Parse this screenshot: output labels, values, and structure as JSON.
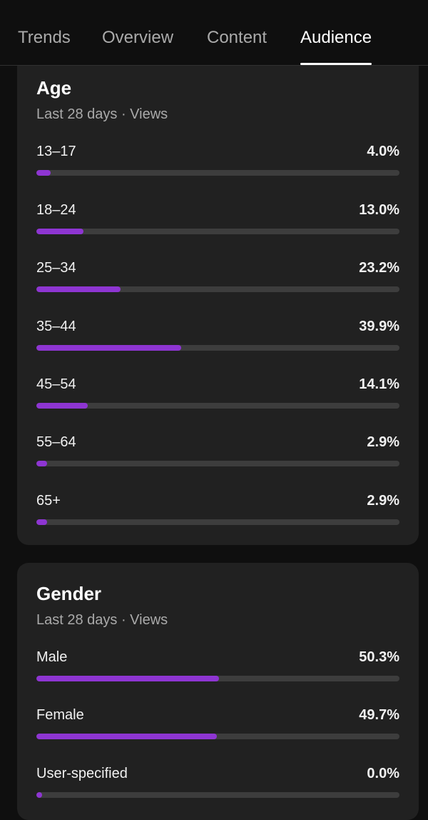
{
  "tabs": [
    {
      "label": "Trends",
      "active": false
    },
    {
      "label": "Overview",
      "active": false
    },
    {
      "label": "Content",
      "active": false
    },
    {
      "label": "Audience",
      "active": true
    }
  ],
  "colors": {
    "accent": "#8e35d2",
    "track": "#3d3d3d",
    "card": "#212121",
    "background": "#0f0f0f"
  },
  "age": {
    "title": "Age",
    "subtitle": "Last 28 days · Views",
    "rows": [
      {
        "label": "13–17",
        "value": "4.0%",
        "percent": 4.0
      },
      {
        "label": "18–24",
        "value": "13.0%",
        "percent": 13.0
      },
      {
        "label": "25–34",
        "value": "23.2%",
        "percent": 23.2
      },
      {
        "label": "35–44",
        "value": "39.9%",
        "percent": 39.9
      },
      {
        "label": "45–54",
        "value": "14.1%",
        "percent": 14.1
      },
      {
        "label": "55–64",
        "value": "2.9%",
        "percent": 2.9
      },
      {
        "label": "65+",
        "value": "2.9%",
        "percent": 2.9
      }
    ]
  },
  "gender": {
    "title": "Gender",
    "subtitle": "Last 28 days · Views",
    "rows": [
      {
        "label": "Male",
        "value": "50.3%",
        "percent": 50.3
      },
      {
        "label": "Female",
        "value": "49.7%",
        "percent": 49.7
      },
      {
        "label": "User-specified",
        "value": "0.0%",
        "percent": 0.0
      }
    ]
  }
}
